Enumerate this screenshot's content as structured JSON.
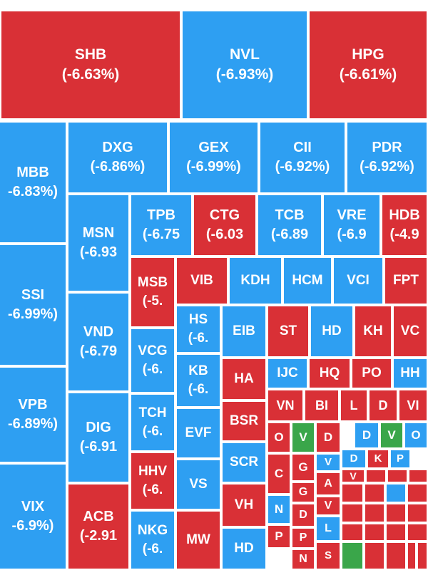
{
  "colors": {
    "down": "#2e9ff2",
    "red": "#d93036",
    "green": "#3aa64a"
  },
  "tiles": [
    {
      "t": "SHB",
      "p": "(-6.63%)",
      "c": "red"
    },
    {
      "t": "NVL",
      "p": "(-6.93%)",
      "c": "blue"
    },
    {
      "t": "HPG",
      "p": "(-6.61%)",
      "c": "red"
    },
    {
      "t": "MBB",
      "p": "-6.83%)",
      "c": "blue"
    },
    {
      "t": "SSI",
      "p": "-6.99%)",
      "c": "blue"
    },
    {
      "t": "VPB",
      "p": "-6.89%)",
      "c": "blue"
    },
    {
      "t": "VIX",
      "p": "-6.9%)",
      "c": "blue"
    },
    {
      "t": "DXG",
      "p": "(-6.86%)",
      "c": "blue"
    },
    {
      "t": "GEX",
      "p": "(-6.99%)",
      "c": "blue"
    },
    {
      "t": "CII",
      "p": "(-6.92%)",
      "c": "blue"
    },
    {
      "t": "PDR",
      "p": "(-6.92%)",
      "c": "blue"
    },
    {
      "t": "MSN",
      "p": "(-6.93",
      "c": "blue"
    },
    {
      "t": "VND",
      "p": "(-6.79",
      "c": "blue"
    },
    {
      "t": "DIG",
      "p": "(-6.91",
      "c": "blue"
    },
    {
      "t": "ACB",
      "p": "(-2.91",
      "c": "red"
    },
    {
      "t": "TPB",
      "p": "(-6.75",
      "c": "blue"
    },
    {
      "t": "CTG",
      "p": "(-6.03",
      "c": "red"
    },
    {
      "t": "TCB",
      "p": "(-6.89",
      "c": "blue"
    },
    {
      "t": "VRE",
      "p": "(-6.9",
      "c": "blue"
    },
    {
      "t": "HDB",
      "p": "(-4.9",
      "c": "red"
    },
    {
      "t": "MSB",
      "p": "(-5.",
      "c": "red"
    },
    {
      "t": "VIB",
      "p": "",
      "c": "red"
    },
    {
      "t": "KDH",
      "p": "",
      "c": "blue"
    },
    {
      "t": "HCM",
      "p": "",
      "c": "blue"
    },
    {
      "t": "VCI",
      "p": "",
      "c": "blue"
    },
    {
      "t": "FPT",
      "p": "",
      "c": "red"
    },
    {
      "t": "VCG",
      "p": "(-6.",
      "c": "blue"
    },
    {
      "t": "TCH",
      "p": "(-6.",
      "c": "blue"
    },
    {
      "t": "HHV",
      "p": "(-6.",
      "c": "red"
    },
    {
      "t": "NKG",
      "p": "(-6.",
      "c": "blue"
    },
    {
      "t": "HS",
      "p": "(-6.",
      "c": "blue"
    },
    {
      "t": "KB",
      "p": "(-6.",
      "c": "blue"
    },
    {
      "t": "EVF",
      "p": "",
      "c": "blue"
    },
    {
      "t": "VS",
      "p": "",
      "c": "blue"
    },
    {
      "t": "MW",
      "p": "",
      "c": "red"
    },
    {
      "t": "EIB",
      "p": "",
      "c": "blue"
    },
    {
      "t": "HA",
      "p": "",
      "c": "red"
    },
    {
      "t": "BSR",
      "p": "",
      "c": "red"
    },
    {
      "t": "SCR",
      "p": "",
      "c": "blue"
    },
    {
      "t": "VH",
      "p": "",
      "c": "red"
    },
    {
      "t": "HD",
      "p": "",
      "c": "blue"
    },
    {
      "t": "ST",
      "p": "",
      "c": "red"
    },
    {
      "t": "HD",
      "p": "",
      "c": "blue"
    },
    {
      "t": "KH",
      "p": "",
      "c": "red"
    },
    {
      "t": "VC",
      "p": "",
      "c": "red"
    },
    {
      "t": "IJC",
      "p": "",
      "c": "blue"
    },
    {
      "t": "HQ",
      "p": "",
      "c": "red"
    },
    {
      "t": "PO",
      "p": "",
      "c": "red"
    },
    {
      "t": "HH",
      "p": "",
      "c": "blue"
    },
    {
      "t": "VN",
      "p": "",
      "c": "red"
    },
    {
      "t": "BI",
      "p": "",
      "c": "red"
    },
    {
      "t": "L",
      "p": "",
      "c": "red"
    },
    {
      "t": "D",
      "p": "",
      "c": "red"
    },
    {
      "t": "VI",
      "p": "",
      "c": "red"
    },
    {
      "t": "O",
      "p": "",
      "c": "red"
    },
    {
      "t": "V",
      "p": "",
      "c": "green"
    },
    {
      "t": "D",
      "p": "",
      "c": "red"
    },
    {
      "t": "D",
      "p": "",
      "c": "blue"
    },
    {
      "t": "V",
      "p": "",
      "c": "green"
    },
    {
      "t": "O",
      "p": "",
      "c": "blue"
    },
    {
      "t": "G",
      "p": "",
      "c": "red"
    },
    {
      "t": "V",
      "p": "",
      "c": "blue"
    },
    {
      "t": "D",
      "p": "",
      "c": "blue"
    },
    {
      "t": "K",
      "p": "",
      "c": "red"
    },
    {
      "t": "P",
      "p": "",
      "c": "blue"
    },
    {
      "t": "C",
      "p": "",
      "c": "red"
    },
    {
      "t": "G",
      "p": "",
      "c": "red"
    },
    {
      "t": "A",
      "p": "",
      "c": "red"
    },
    {
      "t": "V",
      "p": "",
      "c": "red"
    },
    {
      "t": "D",
      "p": "",
      "c": "red"
    },
    {
      "t": "V",
      "p": "",
      "c": "red"
    },
    {
      "t": "N",
      "p": "",
      "c": "blue"
    },
    {
      "t": "P",
      "p": "",
      "c": "red"
    },
    {
      "t": "L",
      "p": "",
      "c": "blue"
    },
    {
      "t": "P",
      "p": "",
      "c": "red"
    },
    {
      "t": "N",
      "p": "",
      "c": "red"
    },
    {
      "t": "S",
      "p": "",
      "c": "red"
    },
    {
      "t": "",
      "p": "",
      "c": "red"
    },
    {
      "t": "",
      "p": "",
      "c": "red"
    },
    {
      "t": "",
      "p": "",
      "c": "red"
    },
    {
      "t": "",
      "p": "",
      "c": "red"
    },
    {
      "t": "",
      "p": "",
      "c": "red"
    },
    {
      "t": "",
      "p": "",
      "c": "blue"
    },
    {
      "t": "",
      "p": "",
      "c": "red"
    },
    {
      "t": "",
      "p": "",
      "c": "red"
    },
    {
      "t": "",
      "p": "",
      "c": "red"
    },
    {
      "t": "",
      "p": "",
      "c": "red"
    },
    {
      "t": "",
      "p": "",
      "c": "red"
    },
    {
      "t": "",
      "p": "",
      "c": "red"
    },
    {
      "t": "",
      "p": "",
      "c": "red"
    },
    {
      "t": "",
      "p": "",
      "c": "red"
    },
    {
      "t": "",
      "p": "",
      "c": "red"
    },
    {
      "t": "",
      "p": "",
      "c": "green"
    },
    {
      "t": "",
      "p": "",
      "c": "red"
    },
    {
      "t": "",
      "p": "",
      "c": "red"
    },
    {
      "t": "",
      "p": "",
      "c": "red"
    },
    {
      "t": "",
      "p": "",
      "c": "red"
    },
    {
      "t": "",
      "p": "",
      "c": "red"
    },
    {
      "t": "",
      "p": "",
      "c": "red"
    },
    {
      "t": "",
      "p": "",
      "c": "red"
    },
    {
      "t": "",
      "p": "",
      "c": "green"
    }
  ]
}
